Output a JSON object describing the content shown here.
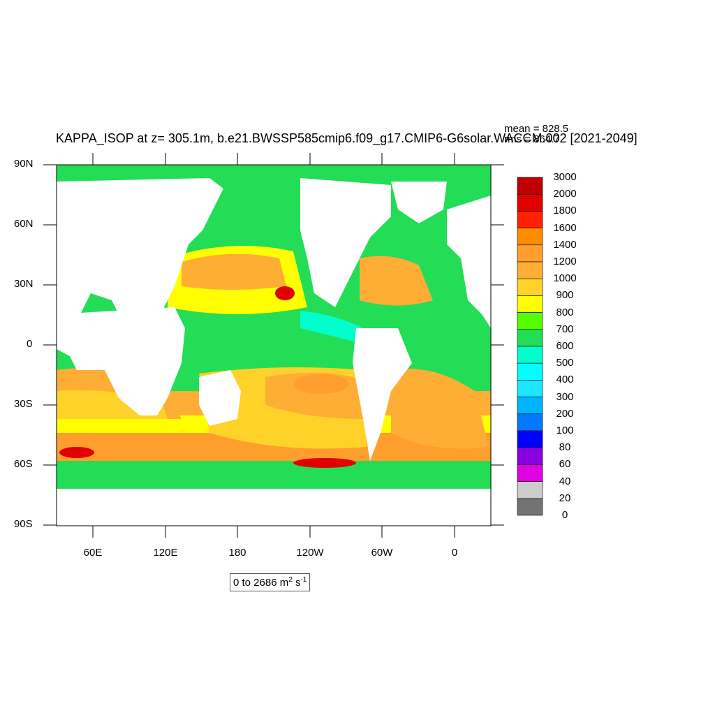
{
  "title": "KAPPA_ISOP at z= 305.1m, b.e21.BWSSP585cmip6.f09_g17.CMIP6-G6solar.WACCM.002 [2021-2049]",
  "stats": {
    "mean": "mean = 828.5",
    "rms": "rms = 864.7"
  },
  "axes": {
    "lat_labels": [
      "90N",
      "60N",
      "30N",
      "0",
      "30S",
      "60S",
      "90S"
    ],
    "lon_labels": [
      "60E",
      "120E",
      "180",
      "120W",
      "60W",
      "0"
    ]
  },
  "range_label": {
    "text": "0 to 2686 m",
    "sup1": "2",
    "mid": " s",
    "sup2": "-1"
  },
  "colorbar": {
    "labels": [
      "3000",
      "2000",
      "1800",
      "1600",
      "1400",
      "1200",
      "1000",
      "900",
      "800",
      "700",
      "600",
      "500",
      "400",
      "300",
      "200",
      "100",
      "80",
      "60",
      "40",
      "20",
      "0"
    ],
    "colors": [
      "#c00000",
      "#e00000",
      "#ff2000",
      "#ff8c00",
      "#ff9e2c",
      "#ffae35",
      "#ffd22a",
      "#ffff00",
      "#55ff00",
      "#22dd55",
      "#00ffcc",
      "#00ffff",
      "#1ee6ff",
      "#00b4ff",
      "#0078ff",
      "#0000ff",
      "#8a00e0",
      "#e000e0",
      "#cccccc",
      "#737373"
    ]
  },
  "colors": {
    "land": "#ffffff",
    "background": "#ffffff"
  }
}
